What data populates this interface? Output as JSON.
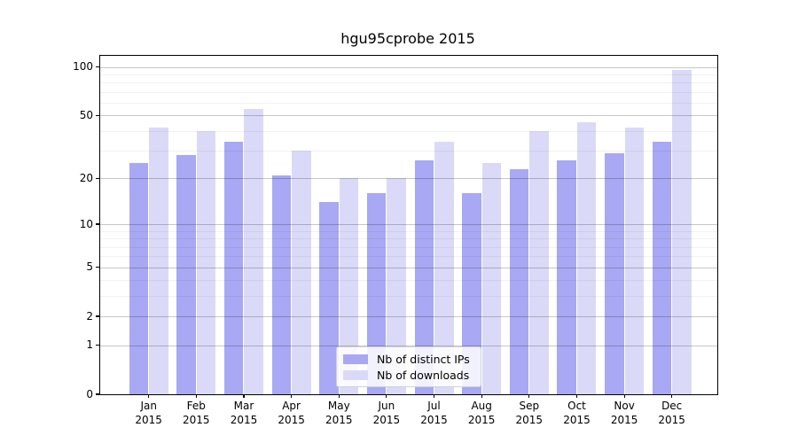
{
  "title": "hgu95cprobe 2015",
  "chart_data": {
    "type": "bar",
    "title": "hgu95cprobe 2015",
    "xlabel": "",
    "ylabel": "",
    "yscale": "log1p",
    "ylim": [
      0,
      117
    ],
    "yticks": [
      100,
      50,
      20,
      10,
      5,
      2,
      1,
      0
    ],
    "minor_gridlines": [
      3,
      4,
      6,
      7,
      8,
      9,
      30,
      40,
      60,
      70,
      80,
      90
    ],
    "grid": true,
    "categories": [
      "Jan",
      "Feb",
      "Mar",
      "Apr",
      "May",
      "Jun",
      "Jul",
      "Aug",
      "Sep",
      "Oct",
      "Nov",
      "Dec"
    ],
    "year": "2015",
    "legend_position": "lower center",
    "series": [
      {
        "name": "Nb of distinct IPs",
        "color": "#a8a8f4",
        "values": [
          25,
          28,
          34,
          21,
          14,
          16,
          26,
          16,
          23,
          26,
          29,
          34
        ]
      },
      {
        "name": "Nb of downloads",
        "color": "#dadaf8",
        "values": [
          42,
          40,
          55,
          30,
          20,
          20,
          34,
          25,
          40,
          45,
          42,
          96
        ]
      }
    ]
  }
}
